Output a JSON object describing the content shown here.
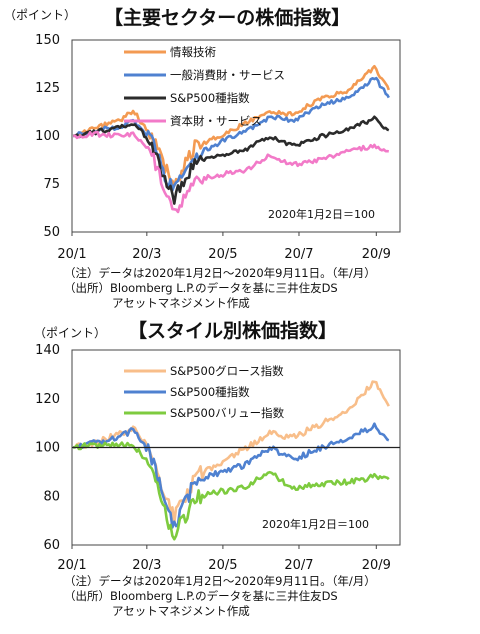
{
  "charts": [
    {
      "unit_label": "（ポイント）",
      "title": "【主要セクターの株価指数】",
      "base_note": "2020年1月2日＝100",
      "note_lines": [
        "（注）データは2020年1月2日～2020年9月11日。（年/月）",
        "（出所）Bloomberg L.P.のデータを基に三井住友DS",
        "アセットマネジメント作成"
      ]
    },
    {
      "unit_label": "（ポイント）",
      "title": "【スタイル別株価指数】",
      "base_note": "2020年1月2日＝100",
      "note_lines": [
        "（注）データは2020年1月2日～2020年9月11日。（年/月）",
        "（出所）Bloomberg L.P.のデータを基に三井住友DS",
        "アセットマネジメント作成"
      ]
    }
  ],
  "chart_data": [
    {
      "type": "line",
      "title": "【主要セクターの株価指数】",
      "ylabel": "（ポイント）",
      "xlabel": "（年/月）",
      "x_ticks": [
        "20/1",
        "20/3",
        "20/5",
        "20/7",
        "20/9"
      ],
      "y_ticks": [
        50,
        75,
        100,
        125,
        150
      ],
      "ylim": [
        50,
        150
      ],
      "x": [
        "2020-01-02",
        "2020-01-20",
        "2020-02-10",
        "2020-02-19",
        "2020-03-05",
        "2020-03-16",
        "2020-03-23",
        "2020-04-09",
        "2020-04-30",
        "2020-05-20",
        "2020-06-08",
        "2020-06-26",
        "2020-07-20",
        "2020-08-10",
        "2020-08-31",
        "2020-09-11"
      ],
      "series": [
        {
          "name": "情報技術",
          "color": "#f39a52",
          "values": [
            100,
            104,
            109,
            113,
            100,
            83,
            75,
            95,
            100,
            107,
            113,
            111,
            120,
            124,
            136,
            124
          ]
        },
        {
          "name": "一般消費財・サービス",
          "color": "#4f81d0",
          "values": [
            100,
            103,
            105,
            108,
            98,
            78,
            72,
            90,
            97,
            103,
            110,
            108,
            116,
            120,
            130,
            120
          ]
        },
        {
          "name": "S&P500種指数",
          "color": "#2b2b2b",
          "values": [
            100,
            102,
            105,
            107,
            96,
            76,
            68,
            86,
            90,
            93,
            100,
            95,
            100,
            104,
            109,
            103
          ]
        },
        {
          "name": "資本財・サービス",
          "color": "#f27ac8",
          "values": [
            100,
            101,
            100,
            101,
            91,
            70,
            60,
            77,
            80,
            82,
            90,
            85,
            88,
            92,
            95,
            92
          ]
        }
      ],
      "legend_position": "top-left",
      "grid": false
    },
    {
      "type": "line",
      "title": "【スタイル別株価指数】",
      "ylabel": "（ポイント）",
      "xlabel": "（年/月）",
      "x_ticks": [
        "20/1",
        "20/3",
        "20/5",
        "20/7",
        "20/9"
      ],
      "y_ticks": [
        60,
        80,
        100,
        120,
        140
      ],
      "ylim": [
        60,
        140
      ],
      "reference_line": 100,
      "x": [
        "2020-01-02",
        "2020-01-20",
        "2020-02-10",
        "2020-02-19",
        "2020-03-05",
        "2020-03-16",
        "2020-03-23",
        "2020-04-09",
        "2020-04-30",
        "2020-05-20",
        "2020-06-08",
        "2020-06-26",
        "2020-07-20",
        "2020-08-10",
        "2020-08-31",
        "2020-09-11"
      ],
      "series": [
        {
          "name": "S&P500グロース指数",
          "color": "#f8be8a",
          "values": [
            100,
            102,
            106,
            108,
            98,
            80,
            72,
            88,
            94,
            100,
            106,
            104,
            110,
            116,
            127,
            117
          ]
        },
        {
          "name": "S&P500種指数",
          "color": "#4f81d0",
          "values": [
            100,
            102,
            105,
            107,
            96,
            76,
            68,
            86,
            90,
            93,
            100,
            95,
            100,
            104,
            109,
            103
          ]
        },
        {
          "name": "S&P500バリュー指数",
          "color": "#7ecb3f",
          "values": [
            100,
            101,
            101,
            101,
            92,
            72,
            64,
            80,
            82,
            84,
            90,
            83,
            85,
            86,
            88,
            87
          ]
        }
      ],
      "legend_position": "top-left",
      "grid": false
    }
  ]
}
